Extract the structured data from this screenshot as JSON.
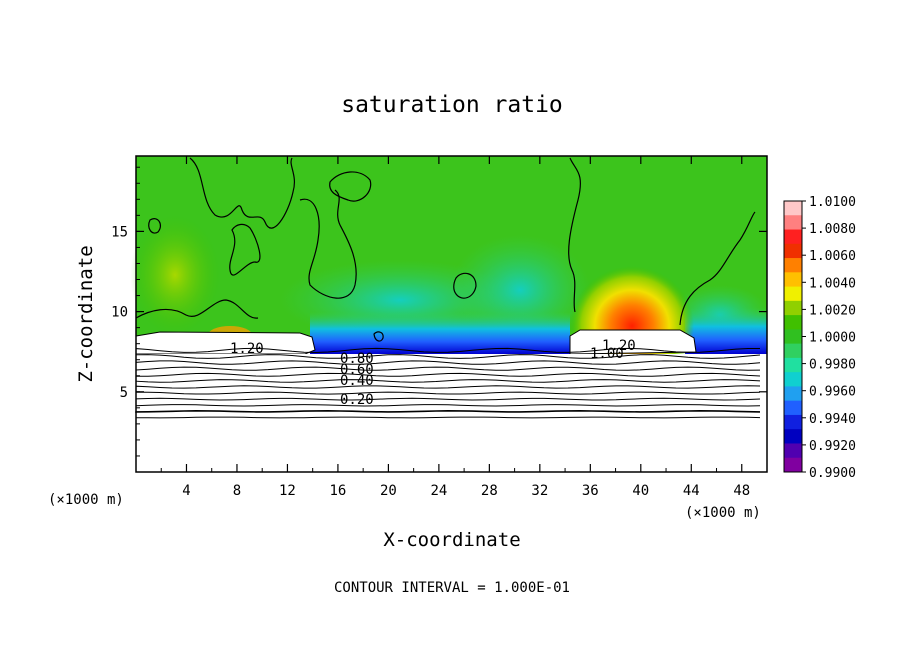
{
  "chart_data": {
    "type": "heatmap",
    "title": "saturation ratio",
    "xlabel": "X-coordinate",
    "ylabel": "Z-coordinate",
    "x_unit": "(×1000 m)",
    "x_unit_right": "(×1000 m)",
    "xlim": [
      0,
      50
    ],
    "ylim": [
      0,
      19.7
    ],
    "x_ticks": [
      "4",
      "8",
      "12",
      "16",
      "20",
      "24",
      "28",
      "32",
      "36",
      "40",
      "44",
      "48"
    ],
    "y_ticks": [
      "5",
      "10",
      "15"
    ],
    "colorbar": {
      "min": 0.99,
      "max": 1.01,
      "labels": [
        "1.0100",
        "1.0080",
        "1.0060",
        "1.0040",
        "1.0020",
        "1.0000",
        "0.9980",
        "0.9960",
        "0.9940",
        "0.9920",
        "0.9900"
      ],
      "colors": [
        "#ffc8c8",
        "#ff8080",
        "#ff2020",
        "#f03000",
        "#ff8000",
        "#ffc000",
        "#f0f000",
        "#90d000",
        "#40c000",
        "#30c020",
        "#30d060",
        "#20e0a0",
        "#10d0d0",
        "#20a0f0",
        "#2060ff",
        "#1020e0",
        "#0000c0",
        "#5000b0",
        "#8000a0"
      ]
    },
    "contour_labels": [
      "1.20",
      "0.80",
      "0.60",
      "0.40",
      "0.20",
      "1.20",
      "1.00"
    ],
    "contour_levels": [
      0.1,
      0.2,
      0.3,
      0.4,
      0.5,
      0.6,
      0.7,
      0.8,
      0.9,
      1.0,
      1.1,
      1.2
    ],
    "footer_note": "CONTOUR INTERVAL = 1.000E-01"
  }
}
